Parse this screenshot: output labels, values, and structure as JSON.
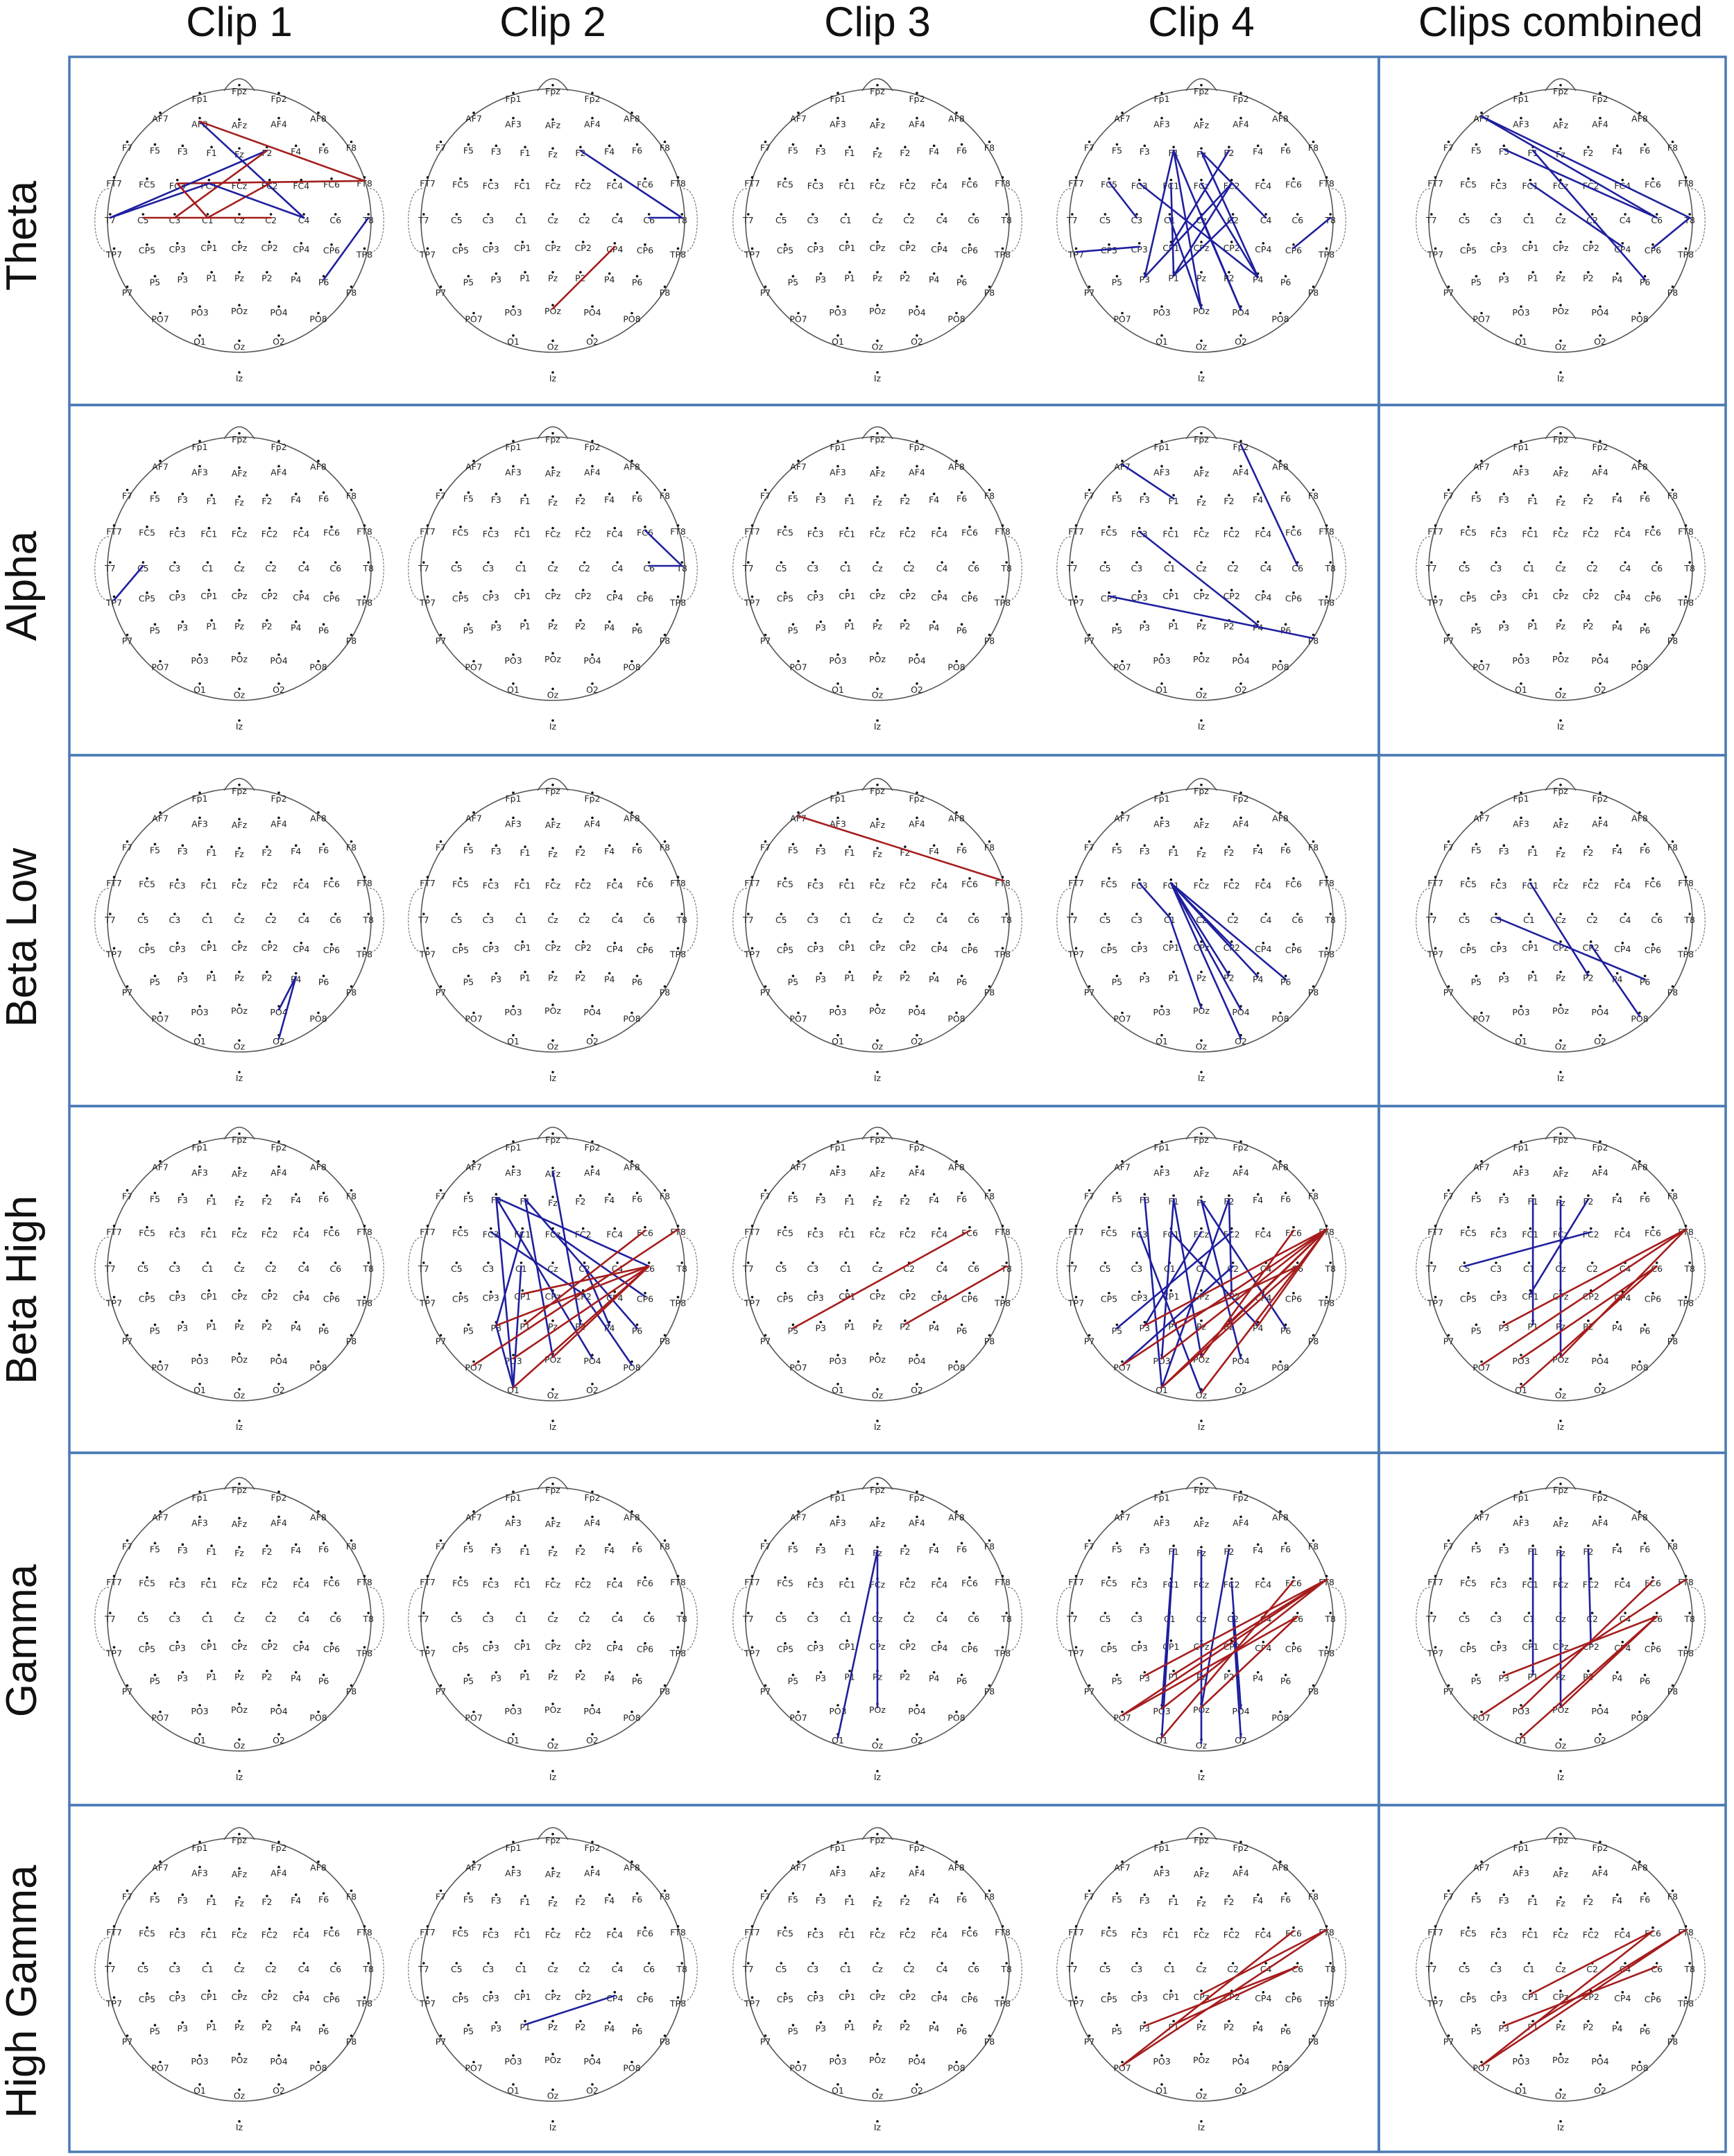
{
  "columns": [
    "Clip 1",
    "Clip 2",
    "Clip 3",
    "Clip 4",
    "Clips combined"
  ],
  "rows": [
    "Theta",
    "Alpha",
    "Beta Low",
    "Beta High",
    "Gamma",
    "High Gamma"
  ],
  "colors": {
    "blue": "#1f1f9e",
    "red": "#a51d1d",
    "frame": "#4a7ab5"
  },
  "electrodes": [
    "Fp1",
    "Fpz",
    "Fp2",
    "AF7",
    "AF3",
    "AFz",
    "AF4",
    "AF8",
    "F7",
    "F5",
    "F3",
    "F1",
    "Fz",
    "F2",
    "F4",
    "F6",
    "F8",
    "FT7",
    "FC5",
    "FC3",
    "FC1",
    "FCz",
    "FC2",
    "FC4",
    "FC6",
    "FT8",
    "T7",
    "C5",
    "C3",
    "C1",
    "Cz",
    "C2",
    "C4",
    "C6",
    "T8",
    "TP7",
    "CP5",
    "CP3",
    "CP1",
    "CPz",
    "CP2",
    "CP4",
    "CP6",
    "TP8",
    "P7",
    "P5",
    "P3",
    "P1",
    "Pz",
    "P2",
    "P4",
    "P6",
    "P8",
    "PO7",
    "PO3",
    "POz",
    "PO4",
    "PO8",
    "O1",
    "Oz",
    "O2",
    "Iz"
  ],
  "connections": {
    "Theta": [
      [
        [
          "AF3",
          "C4",
          "blue"
        ],
        [
          "AF3",
          "FT8",
          "red"
        ],
        [
          "FC3",
          "FT8",
          "red"
        ],
        [
          "T7",
          "FC1",
          "blue"
        ],
        [
          "T7",
          "F2",
          "blue"
        ],
        [
          "C5",
          "C2",
          "red"
        ],
        [
          "C3",
          "F2",
          "red"
        ],
        [
          "FC3",
          "C1",
          "red"
        ],
        [
          "C1",
          "FC2",
          "red"
        ],
        [
          "FC1",
          "C4",
          "blue"
        ],
        [
          "T8",
          "P6",
          "blue"
        ]
      ],
      [
        [
          "F2",
          "T8",
          "blue"
        ],
        [
          "C6",
          "T8",
          "blue"
        ],
        [
          "POz",
          "CP4",
          "red"
        ]
      ],
      [],
      [
        [
          "FC5",
          "C3",
          "blue"
        ],
        [
          "TP7",
          "CP3",
          "blue"
        ],
        [
          "F1",
          "PO4",
          "blue"
        ],
        [
          "F1",
          "POz",
          "blue"
        ],
        [
          "Fz",
          "P4",
          "blue"
        ],
        [
          "F1",
          "P3",
          "blue"
        ],
        [
          "Fz",
          "C4",
          "blue"
        ],
        [
          "FC3",
          "P4",
          "blue"
        ],
        [
          "FC1",
          "P1",
          "blue"
        ],
        [
          "C1",
          "POz",
          "blue"
        ],
        [
          "FC2",
          "P3",
          "blue"
        ],
        [
          "Cz",
          "PO4",
          "blue"
        ],
        [
          "C2",
          "P1",
          "blue"
        ],
        [
          "CP1",
          "F2",
          "blue"
        ],
        [
          "FCz",
          "P4",
          "blue"
        ],
        [
          "P1",
          "FC2",
          "blue"
        ],
        [
          "CP6",
          "T8",
          "blue"
        ]
      ],
      [
        [
          "AF7",
          "T8",
          "blue"
        ],
        [
          "AF7",
          "C6",
          "blue"
        ],
        [
          "F3",
          "C6",
          "blue"
        ],
        [
          "FC1",
          "CP4",
          "blue"
        ],
        [
          "F1",
          "P6",
          "blue"
        ],
        [
          "T8",
          "CP6",
          "blue"
        ]
      ]
    ],
    "Alpha": [
      [
        [
          "C5",
          "TP7",
          "blue"
        ]
      ],
      [
        [
          "FC6",
          "T8",
          "blue"
        ],
        [
          "C6",
          "T8",
          "blue"
        ]
      ],
      [],
      [
        [
          "AF7",
          "F1",
          "blue"
        ],
        [
          "Fp2",
          "C6",
          "blue"
        ],
        [
          "FC3",
          "P4",
          "blue"
        ],
        [
          "CP5",
          "P8",
          "blue"
        ]
      ],
      []
    ],
    "Beta Low": [
      [
        [
          "P4",
          "O2",
          "blue"
        ],
        [
          "P4",
          "PO4",
          "blue"
        ]
      ],
      [],
      [
        [
          "AF7",
          "FT8",
          "red"
        ]
      ],
      [
        [
          "FC3",
          "C1",
          "blue"
        ],
        [
          "FC1",
          "P6",
          "blue"
        ],
        [
          "FC1",
          "P4",
          "blue"
        ],
        [
          "FC1",
          "PO4",
          "blue"
        ],
        [
          "FC1",
          "O2",
          "blue"
        ],
        [
          "FC1",
          "P2",
          "blue"
        ],
        [
          "C1",
          "POz",
          "blue"
        ],
        [
          "FC1",
          "CP2",
          "blue"
        ]
      ],
      [
        [
          "FC1",
          "P2",
          "blue"
        ],
        [
          "C3",
          "P6",
          "blue"
        ],
        [
          "CP2",
          "PO8",
          "blue"
        ]
      ]
    ],
    "Beta High": [
      [],
      [
        [
          "F3",
          "O1",
          "blue"
        ],
        [
          "F3",
          "PO4",
          "blue"
        ],
        [
          "F1",
          "POz",
          "blue"
        ],
        [
          "AFz",
          "P2",
          "blue"
        ],
        [
          "F1",
          "P6",
          "blue"
        ],
        [
          "FC3",
          "CP2",
          "blue"
        ],
        [
          "FC1",
          "P3",
          "blue"
        ],
        [
          "F3",
          "C6",
          "blue"
        ],
        [
          "FCz",
          "CP6",
          "blue"
        ],
        [
          "C1",
          "O1",
          "blue"
        ],
        [
          "C2",
          "P4",
          "blue"
        ],
        [
          "CP2",
          "PO8",
          "blue"
        ],
        [
          "P3",
          "O1",
          "blue"
        ],
        [
          "PO7",
          "FT8",
          "red"
        ],
        [
          "P3",
          "C6",
          "red"
        ],
        [
          "PO3",
          "C6",
          "red"
        ],
        [
          "O1",
          "C6",
          "red"
        ],
        [
          "CP1",
          "C6",
          "red"
        ],
        [
          "P1",
          "FC6",
          "red"
        ],
        [
          "POz",
          "C6",
          "red"
        ]
      ],
      [
        [
          "P5",
          "FC6",
          "red"
        ],
        [
          "P2",
          "T8",
          "red"
        ]
      ],
      [
        [
          "F3",
          "O1",
          "blue"
        ],
        [
          "F1",
          "POz",
          "blue"
        ],
        [
          "Fz",
          "PO4",
          "blue"
        ],
        [
          "F2",
          "O1",
          "blue"
        ],
        [
          "FC3",
          "Oz",
          "blue"
        ],
        [
          "FC1",
          "P4",
          "blue"
        ],
        [
          "F1",
          "PO3",
          "blue"
        ],
        [
          "FC2",
          "P5",
          "blue"
        ],
        [
          "C2",
          "PO7",
          "blue"
        ],
        [
          "FCz",
          "P3",
          "blue"
        ],
        [
          "Fz",
          "P6",
          "blue"
        ],
        [
          "F2",
          "CP2",
          "blue"
        ],
        [
          "PO7",
          "FT8",
          "red"
        ],
        [
          "P3",
          "FT8",
          "red"
        ],
        [
          "PO3",
          "FT8",
          "red"
        ],
        [
          "O1",
          "FT8",
          "red"
        ],
        [
          "Oz",
          "FT8",
          "red"
        ],
        [
          "P1",
          "C6",
          "red"
        ],
        [
          "POz",
          "FC6",
          "red"
        ],
        [
          "O1",
          "C6",
          "red"
        ],
        [
          "P2",
          "FT8",
          "red"
        ],
        [
          "P4",
          "FT8",
          "red"
        ]
      ],
      [
        [
          "F1",
          "P1",
          "blue"
        ],
        [
          "F2",
          "CP1",
          "blue"
        ],
        [
          "C5",
          "FC2",
          "blue"
        ],
        [
          "Fz",
          "POz",
          "blue"
        ],
        [
          "PO7",
          "FT8",
          "red"
        ],
        [
          "P3",
          "FT8",
          "red"
        ],
        [
          "O1",
          "C6",
          "red"
        ],
        [
          "PO3",
          "C6",
          "red"
        ],
        [
          "POz",
          "FT8",
          "red"
        ]
      ]
    ],
    "Gamma": [
      [],
      [],
      [
        [
          "Fz",
          "O1",
          "blue"
        ],
        [
          "Fz",
          "POz",
          "blue"
        ]
      ],
      [
        [
          "F1",
          "O1",
          "blue"
        ],
        [
          "F2",
          "POz",
          "blue"
        ],
        [
          "FC1",
          "PO3",
          "blue"
        ],
        [
          "FC2",
          "PO4",
          "blue"
        ],
        [
          "Fz",
          "Oz",
          "blue"
        ],
        [
          "C2",
          "O2",
          "blue"
        ],
        [
          "PO7",
          "FT8",
          "red"
        ],
        [
          "P3",
          "FT8",
          "red"
        ],
        [
          "PO3",
          "FT8",
          "red"
        ],
        [
          "O1",
          "FC6",
          "red"
        ],
        [
          "POz",
          "C6",
          "red"
        ],
        [
          "P1",
          "FT8",
          "red"
        ],
        [
          "PO7",
          "C6",
          "red"
        ]
      ],
      [
        [
          "F1",
          "P1",
          "blue"
        ],
        [
          "Fz",
          "POz",
          "blue"
        ],
        [
          "F2",
          "CP2",
          "blue"
        ],
        [
          "PO7",
          "FT8",
          "red"
        ],
        [
          "P3",
          "C6",
          "red"
        ],
        [
          "PO3",
          "FC6",
          "red"
        ],
        [
          "O1",
          "C6",
          "red"
        ],
        [
          "POz",
          "C6",
          "red"
        ]
      ]
    ],
    "High Gamma": [
      [],
      [
        [
          "P1",
          "CP4",
          "blue"
        ]
      ],
      [],
      [
        [
          "PO7",
          "FT8",
          "red"
        ],
        [
          "PO7",
          "FC6",
          "red"
        ],
        [
          "P3",
          "C6",
          "red"
        ],
        [
          "P1",
          "C6",
          "red"
        ],
        [
          "CPz",
          "FT8",
          "red"
        ]
      ],
      [
        [
          "PO7",
          "FT8",
          "red"
        ],
        [
          "PO7",
          "FC6",
          "red"
        ],
        [
          "P3",
          "C6",
          "red"
        ],
        [
          "CP1",
          "FC6",
          "red"
        ],
        [
          "P1",
          "FT8",
          "red"
        ]
      ]
    ]
  }
}
